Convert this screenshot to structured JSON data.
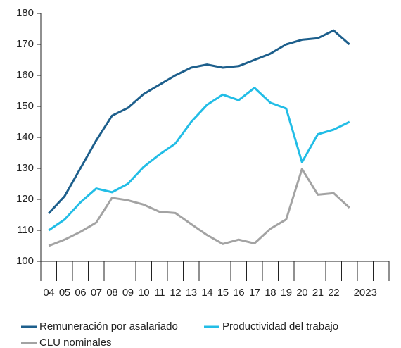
{
  "chart_data": {
    "type": "line",
    "categories": [
      "04",
      "05",
      "06",
      "07",
      "08",
      "09",
      "10",
      "11",
      "12",
      "13",
      "14",
      "15",
      "16",
      "17",
      "18",
      "19",
      "20",
      "21",
      "22",
      null,
      null,
      null
    ],
    "group_label": "2023",
    "series": [
      {
        "name": "Remuneración por asalariado",
        "color": "#1d5f8c",
        "values": [
          115.5,
          121,
          130,
          139,
          147,
          149.5,
          154,
          157,
          160,
          162.5,
          163.5,
          162.5,
          163,
          165,
          167,
          170,
          171.5,
          172,
          174.5,
          170,
          null,
          null
        ]
      },
      {
        "name": "Productividad del trabajo",
        "color": "#22bde6",
        "values": [
          110,
          113.5,
          119,
          123.5,
          122.3,
          125,
          130.5,
          134.5,
          138,
          145,
          150.5,
          153.8,
          152,
          156,
          151.2,
          149.3,
          132,
          141,
          142.5,
          145,
          null,
          null
        ]
      },
      {
        "name": "CLU nominales",
        "color": "#a3a3a3",
        "values": [
          105,
          107,
          109.5,
          112.5,
          120.5,
          119.7,
          118.3,
          116,
          115.6,
          112,
          108.5,
          105.6,
          107,
          105.8,
          110.5,
          113.5,
          129.8,
          121.5,
          122,
          117.3,
          null,
          null
        ]
      }
    ],
    "ylim": [
      100,
      180
    ],
    "yticks": [
      100,
      110,
      120,
      130,
      140,
      150,
      160,
      170,
      180
    ]
  }
}
